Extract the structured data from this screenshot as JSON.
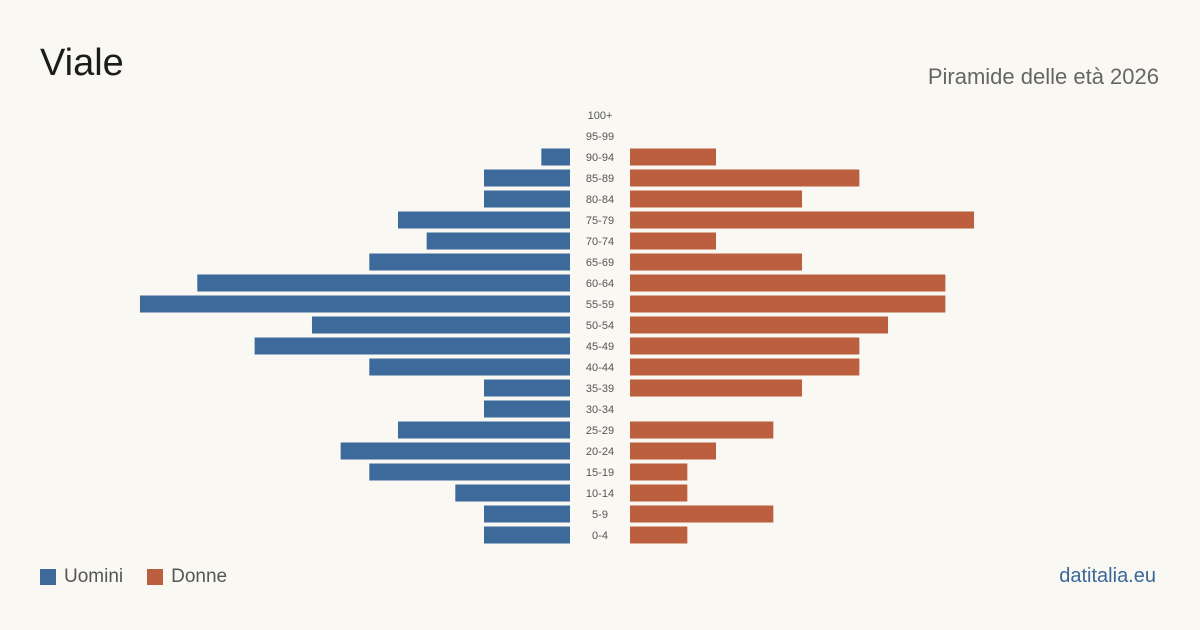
{
  "header": {
    "title": "Viale",
    "subtitle": "Piramide delle età 2026"
  },
  "legend": {
    "male_label": "Uomini",
    "female_label": "Donne"
  },
  "brand": "datitalia.eu",
  "colors": {
    "male": "#3b6a9b",
    "female": "#bb5f3e",
    "background": "#faf8f3"
  },
  "chart_data": {
    "type": "bar",
    "orientation": "horizontal-pyramid",
    "categories": [
      "100+",
      "95-99",
      "90-94",
      "85-89",
      "80-84",
      "75-79",
      "70-74",
      "65-69",
      "60-64",
      "55-59",
      "50-54",
      "45-49",
      "40-44",
      "35-39",
      "30-34",
      "25-29",
      "20-24",
      "15-19",
      "10-14",
      "5-9",
      "0-4"
    ],
    "series": [
      {
        "name": "Uomini",
        "values": [
          0,
          0,
          1,
          3,
          3,
          6,
          5,
          7,
          13,
          15,
          9,
          11,
          7,
          3,
          3,
          6,
          8,
          7,
          4,
          3,
          3
        ]
      },
      {
        "name": "Donne",
        "values": [
          0,
          0,
          3,
          8,
          6,
          12,
          3,
          6,
          11,
          11,
          9,
          8,
          8,
          6,
          0,
          5,
          3,
          2,
          2,
          5,
          2
        ]
      }
    ],
    "legend_position": "bottom-left",
    "grid": false
  }
}
